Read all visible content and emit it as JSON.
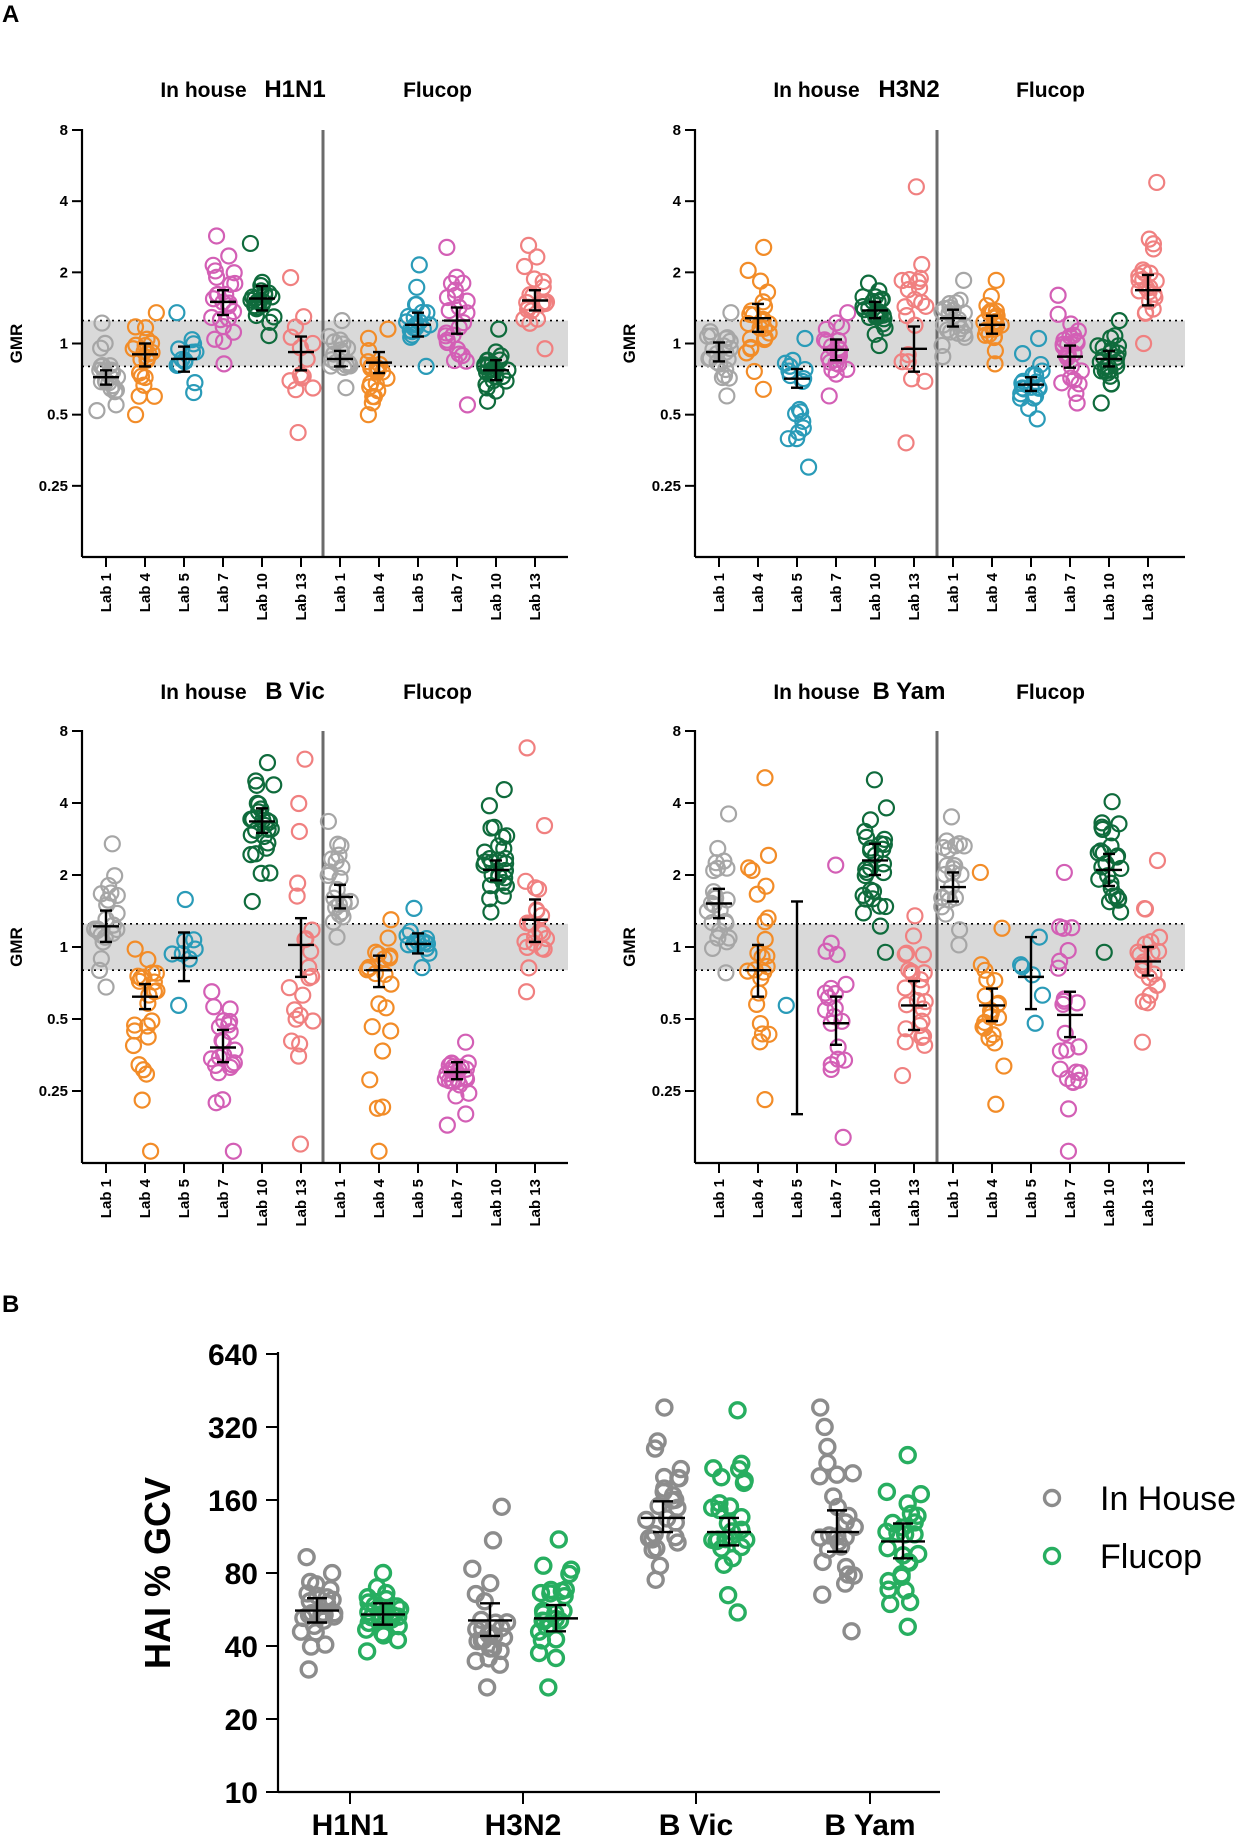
{
  "figure": {
    "label_a": "A",
    "label_b": "B"
  },
  "colors": {
    "Lab 1": "#a6a6a6",
    "Lab 4": "#f28c28",
    "Lab 5": "#2a9bb8",
    "Lab 7": "#d35fb5",
    "Lab 10": "#0f6b3c",
    "Lab 13": "#f08080",
    "in_house": "#8c8c8c",
    "flucop": "#27ae60"
  },
  "chart_data": [
    {
      "id": "h1n1",
      "type": "scatter",
      "title": "H1N1",
      "group_labels": [
        "In house",
        "Flucop"
      ],
      "ylabel": "GMR",
      "yscale": "log2",
      "ylim": [
        0.125,
        8
      ],
      "yticks": [
        "0.25",
        "0.5",
        "1",
        "2",
        "4",
        "8"
      ],
      "reference_band": [
        0.8,
        1.25
      ],
      "categories": [
        "Lab 1",
        "Lab 4",
        "Lab 5",
        "Lab 7",
        "Lab 10",
        "Lab 13",
        "Lab 1",
        "Lab 4",
        "Lab 5",
        "Lab 7",
        "Lab 10",
        "Lab 13"
      ],
      "gmr": [
        0.72,
        0.9,
        0.86,
        1.5,
        1.55,
        0.92,
        0.86,
        0.83,
        1.2,
        1.25,
        0.77,
        1.52
      ],
      "ci_low": [
        0.67,
        0.8,
        0.76,
        1.32,
        1.38,
        0.77,
        0.8,
        0.75,
        1.07,
        1.1,
        0.7,
        1.38
      ],
      "ci_high": [
        0.77,
        1.0,
        0.97,
        1.68,
        1.75,
        1.07,
        0.93,
        0.92,
        1.35,
        1.42,
        0.85,
        1.68
      ],
      "min": [
        0.52,
        0.5,
        0.62,
        0.82,
        1.08,
        0.42,
        0.65,
        0.5,
        0.8,
        0.55,
        0.57,
        0.95
      ],
      "max": [
        1.22,
        1.35,
        1.35,
        2.85,
        2.65,
        1.9,
        1.25,
        1.15,
        2.15,
        2.55,
        1.15,
        2.6
      ],
      "n": [
        22,
        22,
        14,
        24,
        22,
        14,
        18,
        20,
        20,
        24,
        24,
        20
      ]
    },
    {
      "id": "h3n2",
      "type": "scatter",
      "title": "H3N2",
      "group_labels": [
        "In house",
        "Flucop"
      ],
      "ylabel": "GMR",
      "yscale": "log2",
      "ylim": [
        0.125,
        8
      ],
      "yticks": [
        "0.25",
        "0.5",
        "1",
        "2",
        "4",
        "8"
      ],
      "reference_band": [
        0.8,
        1.25
      ],
      "categories": [
        "Lab 1",
        "Lab 4",
        "Lab 5",
        "Lab 7",
        "Lab 10",
        "Lab 13",
        "Lab 1",
        "Lab 4",
        "Lab 5",
        "Lab 7",
        "Lab 10",
        "Lab 13"
      ],
      "gmr": [
        0.92,
        1.28,
        0.71,
        0.94,
        1.38,
        0.95,
        1.28,
        1.2,
        0.67,
        0.88,
        0.86,
        1.68
      ],
      "ci_low": [
        0.84,
        1.12,
        0.65,
        0.85,
        1.28,
        0.76,
        1.18,
        1.1,
        0.63,
        0.79,
        0.8,
        1.45
      ],
      "ci_high": [
        1.01,
        1.47,
        0.78,
        1.04,
        1.5,
        1.18,
        1.39,
        1.31,
        0.72,
        0.98,
        0.93,
        1.95
      ],
      "min": [
        0.6,
        0.64,
        0.3,
        0.6,
        0.98,
        0.38,
        0.88,
        0.82,
        0.48,
        0.56,
        0.56,
        1.0
      ],
      "max": [
        1.35,
        2.55,
        1.05,
        1.35,
        1.8,
        4.6,
        1.85,
        1.85,
        1.05,
        1.6,
        1.25,
        4.8
      ],
      "n": [
        22,
        24,
        18,
        20,
        24,
        20,
        22,
        24,
        20,
        24,
        24,
        22
      ]
    },
    {
      "id": "bvic",
      "type": "scatter",
      "title": "B Vic",
      "group_labels": [
        "In house",
        "Flucop"
      ],
      "ylabel": "GMR",
      "yscale": "log2",
      "ylim": [
        0.125,
        8
      ],
      "yticks": [
        "0.25",
        "0.5",
        "1",
        "2",
        "4",
        "8"
      ],
      "reference_band": [
        0.8,
        1.25
      ],
      "categories": [
        "Lab 1",
        "Lab 4",
        "Lab 5",
        "Lab 7",
        "Lab 10",
        "Lab 13",
        "Lab 1",
        "Lab 4",
        "Lab 5",
        "Lab 7",
        "Lab 10",
        "Lab 13"
      ],
      "gmr": [
        1.22,
        0.62,
        0.9,
        0.38,
        3.35,
        1.02,
        1.62,
        0.8,
        1.03,
        0.3,
        2.1,
        1.3
      ],
      "ci_low": [
        1.05,
        0.55,
        0.72,
        0.33,
        3.0,
        0.75,
        1.45,
        0.68,
        0.94,
        0.28,
        1.9,
        1.05
      ],
      "ci_high": [
        1.42,
        0.7,
        1.15,
        0.45,
        3.8,
        1.32,
        1.82,
        0.92,
        1.14,
        0.33,
        2.3,
        1.58
      ],
      "min": [
        0.68,
        0.14,
        0.57,
        0.14,
        1.55,
        0.15,
        1.1,
        0.14,
        0.82,
        0.18,
        1.4,
        0.65
      ],
      "max": [
        2.7,
        0.98,
        1.58,
        0.65,
        5.9,
        6.1,
        3.35,
        1.3,
        1.45,
        0.4,
        4.55,
        6.8
      ],
      "n": [
        22,
        24,
        8,
        22,
        26,
        22,
        22,
        22,
        14,
        24,
        28,
        22
      ]
    },
    {
      "id": "byam",
      "type": "scatter",
      "title": "B Yam",
      "group_labels": [
        "In house",
        "Flucop"
      ],
      "ylabel": "GMR",
      "yscale": "log2",
      "ylim": [
        0.125,
        8
      ],
      "yticks": [
        "0.25",
        "0.5",
        "1",
        "2",
        "4",
        "8"
      ],
      "reference_band": [
        0.8,
        1.25
      ],
      "categories": [
        "Lab 1",
        "Lab 4",
        "Lab 5",
        "Lab 7",
        "Lab 10",
        "Lab 13",
        "Lab 1",
        "Lab 4",
        "Lab 5",
        "Lab 7",
        "Lab 10",
        "Lab 13"
      ],
      "gmr": [
        1.52,
        0.8,
        null,
        0.48,
        2.3,
        0.57,
        1.78,
        0.57,
        0.75,
        0.52,
        2.1,
        0.87
      ],
      "ci_low": [
        1.32,
        0.62,
        0.2,
        0.39,
        2.0,
        0.45,
        1.55,
        0.49,
        0.55,
        0.42,
        1.8,
        0.76
      ],
      "ci_high": [
        1.75,
        1.02,
        1.55,
        0.62,
        2.7,
        0.72,
        2.05,
        0.67,
        1.1,
        0.65,
        2.45,
        1.0
      ],
      "min": [
        0.78,
        0.23,
        0.57,
        0.16,
        0.95,
        0.29,
        1.02,
        0.22,
        0.48,
        0.14,
        0.95,
        0.4
      ],
      "max": [
        3.6,
        5.1,
        0.57,
        2.2,
        5.0,
        1.35,
        3.5,
        2.05,
        1.1,
        2.05,
        4.05,
        2.3
      ],
      "n": [
        24,
        24,
        1,
        20,
        28,
        24,
        24,
        22,
        6,
        24,
        26,
        22
      ]
    },
    {
      "id": "gcv",
      "type": "scatter",
      "title": "",
      "ylabel": "HAI % GCV",
      "yscale": "log2",
      "ylim": [
        10,
        640
      ],
      "yticks": [
        "10",
        "20",
        "40",
        "80",
        "160",
        "320",
        "640"
      ],
      "categories": [
        "H1N1",
        "H3N2",
        "B Vic",
        "B Yam"
      ],
      "series": [
        {
          "name": "In House",
          "gm": [
            56,
            51,
            135,
            118
          ],
          "ci_low": [
            50,
            44,
            118,
            98
          ],
          "ci_high": [
            63,
            60,
            158,
            145
          ],
          "min": [
            32,
            27,
            75,
            46
          ],
          "max": [
            93,
            150,
            385,
            385
          ]
        },
        {
          "name": "Flucop",
          "gm": [
            54,
            52,
            118,
            108
          ],
          "ci_low": [
            49,
            46,
            104,
            92
          ],
          "ci_high": [
            60,
            59,
            135,
            128
          ],
          "min": [
            38,
            27,
            55,
            48
          ],
          "max": [
            80,
            110,
            375,
            245
          ]
        }
      ],
      "legend_position": "right"
    }
  ]
}
